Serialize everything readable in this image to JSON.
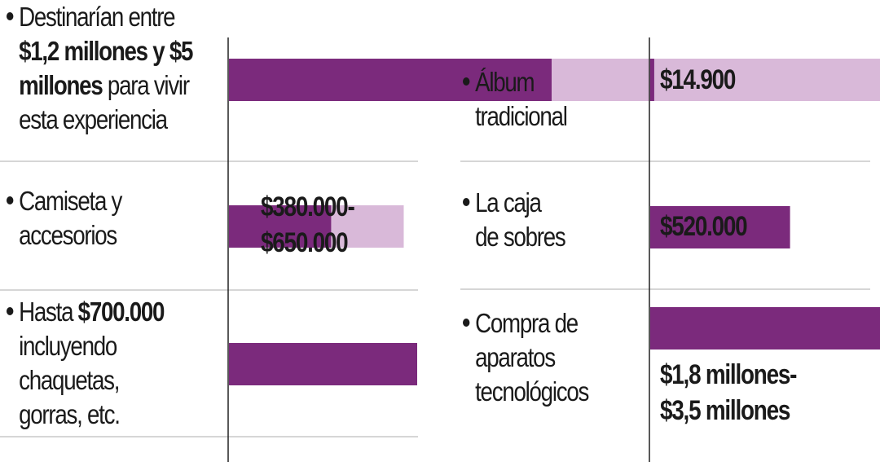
{
  "colors": {
    "dark": "#7b2a7c",
    "light": "#d9b9d9",
    "axis": "#222222",
    "divider": "#c8c8c8"
  },
  "left": {
    "rows": [
      {
        "lines": [
          [
            {
              "t": "Destinarían entre",
              "b": false
            }
          ],
          [
            {
              "t": "$1,2 millones y $5",
              "b": true
            }
          ],
          [
            {
              "t": "millones",
              "b": true
            },
            {
              "t": " para vivir",
              "b": false
            }
          ],
          [
            {
              "t": "esta experiencia",
              "b": false
            }
          ]
        ],
        "value_label": []
      },
      {
        "lines": [
          [
            {
              "t": "Camiseta y",
              "b": false
            }
          ],
          [
            {
              "t": "accesorios",
              "b": false
            }
          ]
        ],
        "value_label": [
          "$380.000-",
          "$650.000"
        ]
      },
      {
        "lines": [
          [
            {
              "t": "Hasta ",
              "b": false
            },
            {
              "t": "$700.000",
              "b": true
            }
          ],
          [
            {
              "t": "incluyendo",
              "b": false
            }
          ],
          [
            {
              "t": "chaquetas,",
              "b": false
            }
          ],
          [
            {
              "t": "gorras, etc.",
              "b": false
            }
          ]
        ],
        "value_label": []
      }
    ]
  },
  "right": {
    "rows": [
      {
        "lines": [
          [
            {
              "t": "Álbum",
              "b": false
            }
          ],
          [
            {
              "t": "tradicional",
              "b": false
            }
          ]
        ],
        "value_label": [
          "$14.900"
        ]
      },
      {
        "lines": [
          [
            {
              "t": "La caja",
              "b": false
            }
          ],
          [
            {
              "t": "de sobres",
              "b": false
            }
          ]
        ],
        "value_label": [
          "$520.000"
        ]
      },
      {
        "lines": [
          [
            {
              "t": "Compra de",
              "b": false
            }
          ],
          [
            {
              "t": "aparatos",
              "b": false
            }
          ],
          [
            {
              "t": "tecnológicos",
              "b": false
            }
          ]
        ],
        "value_label": [
          "$1,8 millones-",
          "$3,5 millones"
        ]
      }
    ]
  },
  "chart_data": {
    "type": "bar",
    "orientation": "horizontal",
    "units": "COP",
    "panels": [
      {
        "categories": [
          "Destinarían entre $1,2 millones y $5 millones para vivir esta experiencia",
          "Camiseta y accesorios",
          "Hasta $700.000 incluyendo chaquetas, gorras, etc."
        ],
        "min_values": [
          1200000,
          380000,
          700000
        ],
        "max_values": [
          5000000,
          650000,
          700000
        ]
      },
      {
        "categories": [
          "Álbum tradicional",
          "La caja de sobres",
          "Compra de aparatos tecnológicos"
        ],
        "min_values": [
          14900,
          520000,
          1800000
        ],
        "max_values": [
          14900,
          520000,
          3500000
        ]
      }
    ]
  }
}
